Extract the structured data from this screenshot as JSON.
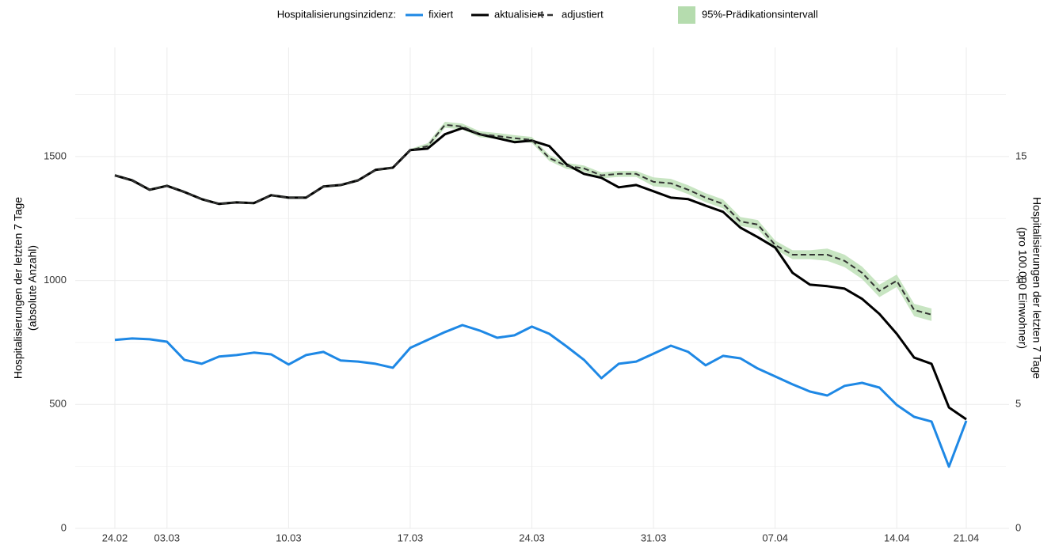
{
  "chart_data": {
    "type": "line",
    "legend_title": "Hospitalisierungsinzidenz:",
    "y_label": [
      "Hospitalisierungen der letzten 7 Tage",
      "(absolute Anzahl)"
    ],
    "y2_label": [
      "Hospitalisierungen der letzten 7 Tage",
      "(pro 100.000 Einwohner)"
    ],
    "categories": [
      "24.02",
      null,
      null,
      "03.03",
      null,
      null,
      null,
      null,
      null,
      null,
      "10.03",
      null,
      null,
      null,
      null,
      null,
      null,
      "17.03",
      null,
      null,
      null,
      null,
      null,
      null,
      "24.03",
      null,
      null,
      null,
      null,
      null,
      null,
      "31.03",
      null,
      null,
      null,
      null,
      null,
      null,
      "07.04",
      null,
      null,
      null,
      null,
      null,
      null,
      "14.04",
      null,
      null,
      null,
      "21.04"
    ],
    "ylim": [
      0,
      1940
    ],
    "yticks": [
      0,
      500,
      1000,
      1500
    ],
    "yminor": [
      250,
      750,
      1250,
      1750
    ],
    "y2lim": [
      0,
      19.4
    ],
    "y2ticks": [
      0,
      5,
      10,
      15
    ],
    "grid": true,
    "series": [
      {
        "name": "fixiert",
        "color": "#1e88e5",
        "dash": false,
        "values": [
          760,
          766,
          763,
          753,
          680,
          664,
          693,
          699,
          709,
          702,
          661,
          699,
          712,
          677,
          673,
          664,
          648,
          728,
          760,
          792,
          820,
          798,
          769,
          779,
          814,
          785,
          734,
          680,
          606,
          664,
          673,
          705,
          737,
          712,
          658,
          696,
          686,
          645,
          613,
          581,
          552,
          536,
          575,
          587,
          568,
          498,
          450,
          431,
          249,
          434
        ]
      },
      {
        "name": "aktualisiert",
        "color": "#000000",
        "dash": false,
        "values": [
          1424,
          1404,
          1366,
          1382,
          1357,
          1328,
          1309,
          1315,
          1312,
          1344,
          1334,
          1334,
          1379,
          1385,
          1404,
          1446,
          1455,
          1526,
          1532,
          1590,
          1615,
          1590,
          1574,
          1558,
          1564,
          1542,
          1468,
          1430,
          1414,
          1376,
          1385,
          1360,
          1334,
          1328,
          1302,
          1277,
          1213,
          1175,
          1133,
          1031,
          983,
          977,
          967,
          926,
          865,
          785,
          689,
          664,
          488,
          440
        ]
      },
      {
        "name": "adjustiert",
        "color": "#333333",
        "dash": true,
        "values": [
          1424,
          1404,
          1366,
          1382,
          1357,
          1328,
          1309,
          1315,
          1312,
          1344,
          1334,
          1334,
          1379,
          1385,
          1404,
          1446,
          1455,
          1526,
          1542,
          1628,
          1621,
          1590,
          1583,
          1574,
          1567,
          1494,
          1462,
          1452,
          1424,
          1430,
          1430,
          1398,
          1392,
          1366,
          1334,
          1309,
          1238,
          1226,
          1143,
          1104,
          1104,
          1104,
          1079,
          1031,
          958,
          999,
          881,
          862,
          null,
          null
        ]
      }
    ],
    "interval": {
      "name": "95%-Prädikationsintervall",
      "color": "#b5dcae",
      "lower": [
        1419,
        1399,
        1361,
        1377,
        1352,
        1323,
        1304,
        1310,
        1307,
        1339,
        1329,
        1329,
        1374,
        1380,
        1399,
        1441,
        1450,
        1521,
        1530,
        1616,
        1609,
        1578,
        1571,
        1562,
        1555,
        1482,
        1450,
        1440,
        1412,
        1418,
        1418,
        1380,
        1374,
        1348,
        1316,
        1291,
        1220,
        1208,
        1125,
        1086,
        1086,
        1079,
        1054,
        1006,
        933,
        974,
        856,
        837,
        null,
        null
      ],
      "upper": [
        1429,
        1409,
        1371,
        1387,
        1362,
        1333,
        1314,
        1320,
        1317,
        1349,
        1339,
        1339,
        1384,
        1390,
        1409,
        1451,
        1460,
        1531,
        1554,
        1640,
        1633,
        1602,
        1595,
        1586,
        1579,
        1506,
        1474,
        1464,
        1436,
        1442,
        1442,
        1416,
        1410,
        1384,
        1352,
        1327,
        1256,
        1244,
        1161,
        1122,
        1122,
        1129,
        1104,
        1056,
        983,
        1024,
        906,
        887,
        null,
        null
      ]
    }
  }
}
